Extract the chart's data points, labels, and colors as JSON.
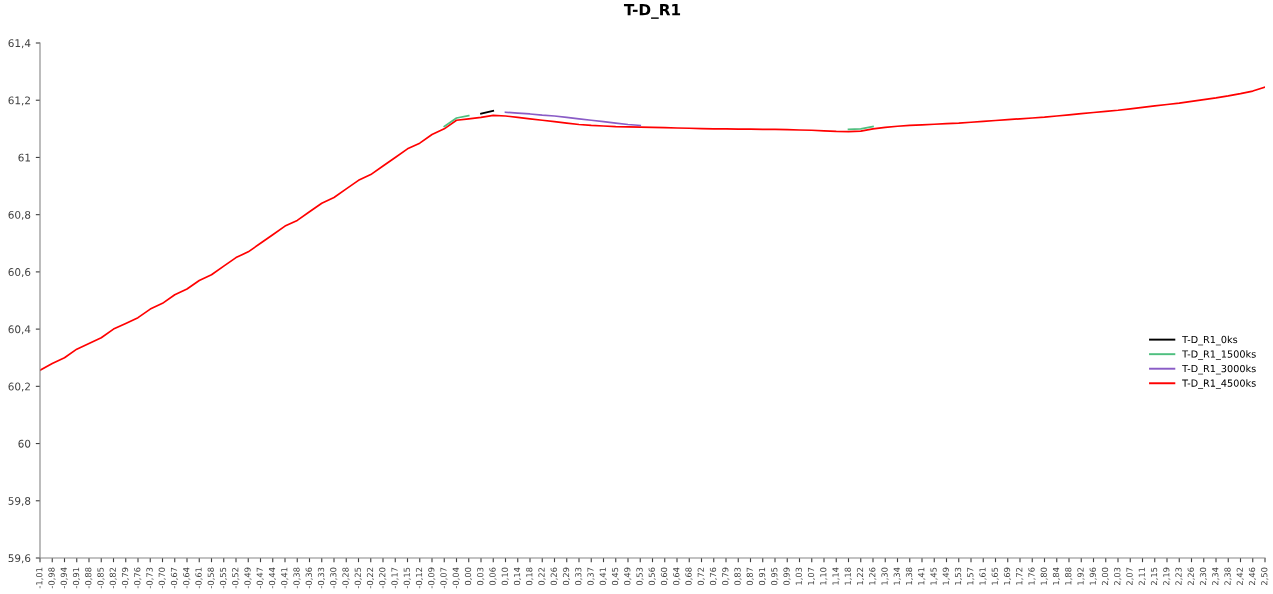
{
  "chart_data": {
    "type": "line",
    "title": "T-D_R1",
    "categories": [
      "-1,01",
      "-0,98",
      "-0,94",
      "-0,91",
      "-0,88",
      "-0,85",
      "-0,82",
      "-0,79",
      "-0,76",
      "-0,73",
      "-0,70",
      "-0,67",
      "-0,64",
      "-0,61",
      "-0,58",
      "-0,55",
      "-0,52",
      "-0,49",
      "-0,47",
      "-0,44",
      "-0,41",
      "-0,38",
      "-0,36",
      "-0,33",
      "-0,30",
      "-0,28",
      "-0,25",
      "-0,22",
      "-0,20",
      "-0,17",
      "-0,15",
      "-0,12",
      "-0,09",
      "-0,07",
      "-0,04",
      "0,00",
      "0,03",
      "0,06",
      "0,10",
      "0,14",
      "0,18",
      "0,22",
      "0,26",
      "0,29",
      "0,33",
      "0,37",
      "0,41",
      "0,45",
      "0,49",
      "0,53",
      "0,56",
      "0,60",
      "0,64",
      "0,68",
      "0,72",
      "0,76",
      "0,79",
      "0,83",
      "0,87",
      "0,91",
      "0,95",
      "0,99",
      "1,03",
      "1,07",
      "1,10",
      "1,14",
      "1,18",
      "1,22",
      "1,26",
      "1,30",
      "1,34",
      "1,38",
      "1,41",
      "1,45",
      "1,49",
      "1,53",
      "1,57",
      "1,61",
      "1,65",
      "1,69",
      "1,72",
      "1,76",
      "1,80",
      "1,84",
      "1,88",
      "1,92",
      "1,96",
      "2,00",
      "2,03",
      "2,07",
      "2,11",
      "2,15",
      "2,19",
      "2,23",
      "2,26",
      "2,30",
      "2,34",
      "2,38",
      "2,42",
      "2,46",
      "2,50"
    ],
    "series": [
      {
        "name": "T-D_R1_0ks",
        "color": "#000000",
        "values": [
          null,
          null,
          null,
          null,
          null,
          null,
          null,
          null,
          null,
          null,
          null,
          null,
          null,
          null,
          null,
          null,
          null,
          null,
          null,
          null,
          null,
          null,
          null,
          null,
          null,
          null,
          null,
          null,
          null,
          null,
          null,
          null,
          null,
          null,
          null,
          null,
          61.153,
          61.163,
          null,
          null,
          null,
          null,
          null,
          null,
          null,
          null,
          null,
          null,
          null,
          null,
          null,
          null,
          null,
          null,
          null,
          null,
          null,
          null,
          null,
          null,
          null,
          null,
          null,
          null,
          null,
          null,
          null,
          null,
          null,
          null,
          null,
          null,
          null,
          null,
          null,
          null,
          null,
          null,
          null,
          null,
          null,
          null,
          null,
          null,
          null,
          null,
          null,
          null,
          null,
          null,
          null,
          null,
          null,
          null,
          null,
          null,
          null,
          null,
          null,
          null,
          null
        ]
      },
      {
        "name": "T-D_R1_1500ks",
        "color": "#4fbf7f",
        "values": [
          null,
          null,
          null,
          null,
          null,
          null,
          null,
          null,
          null,
          null,
          null,
          null,
          null,
          null,
          null,
          null,
          null,
          null,
          null,
          null,
          null,
          null,
          null,
          null,
          null,
          null,
          null,
          null,
          null,
          null,
          null,
          null,
          null,
          61.108,
          61.138,
          61.146,
          null,
          null,
          null,
          null,
          null,
          null,
          null,
          null,
          null,
          null,
          null,
          null,
          null,
          null,
          null,
          null,
          null,
          null,
          null,
          null,
          null,
          null,
          null,
          null,
          null,
          null,
          null,
          null,
          null,
          null,
          61.098,
          61.1,
          61.108,
          null,
          null,
          null,
          null,
          null,
          null,
          null,
          null,
          null,
          null,
          null,
          null,
          null,
          null,
          null,
          null,
          null,
          null,
          null,
          null,
          null,
          null,
          null,
          null,
          null,
          null,
          null,
          null,
          null,
          null,
          null,
          null
        ]
      },
      {
        "name": "T-D_R1_3000ks",
        "color": "#8a5cc6",
        "values": [
          null,
          null,
          null,
          null,
          null,
          null,
          null,
          null,
          null,
          null,
          null,
          null,
          null,
          null,
          null,
          null,
          null,
          null,
          null,
          null,
          null,
          null,
          null,
          null,
          null,
          null,
          null,
          null,
          null,
          null,
          null,
          null,
          null,
          null,
          null,
          null,
          null,
          null,
          61.158,
          61.155,
          61.152,
          61.148,
          61.145,
          61.14,
          61.135,
          61.13,
          61.125,
          61.12,
          61.115,
          61.112,
          null,
          null,
          null,
          null,
          null,
          null,
          null,
          null,
          null,
          null,
          null,
          null,
          null,
          null,
          null,
          null,
          null,
          null,
          null,
          null,
          null,
          null,
          null,
          null,
          null,
          null,
          null,
          null,
          null,
          null,
          null,
          null,
          null,
          null,
          null,
          null,
          null,
          null,
          null,
          null,
          null,
          null,
          null,
          null,
          null,
          null,
          null,
          null,
          null,
          null,
          null
        ]
      },
      {
        "name": "T-D_R1_4500ks",
        "color": "#ff0000",
        "values": [
          60.256,
          60.28,
          60.3,
          60.33,
          60.35,
          60.37,
          60.4,
          60.42,
          60.44,
          60.47,
          60.49,
          60.52,
          60.54,
          60.57,
          60.59,
          60.62,
          60.65,
          60.67,
          60.7,
          60.73,
          60.76,
          60.78,
          60.81,
          60.84,
          60.86,
          60.89,
          60.92,
          60.94,
          60.97,
          61.0,
          61.03,
          61.05,
          61.08,
          61.1,
          61.13,
          61.135,
          61.14,
          61.147,
          61.145,
          61.14,
          61.135,
          61.13,
          61.125,
          61.12,
          61.115,
          61.112,
          61.11,
          61.108,
          61.107,
          61.106,
          61.105,
          61.104,
          61.103,
          61.102,
          61.101,
          61.1,
          61.1,
          61.099,
          61.099,
          61.098,
          61.098,
          61.097,
          61.096,
          61.095,
          61.093,
          61.091,
          61.09,
          61.092,
          61.1,
          61.105,
          61.109,
          61.112,
          61.114,
          61.116,
          61.118,
          61.12,
          61.123,
          61.126,
          61.129,
          61.132,
          61.135,
          61.138,
          61.141,
          61.145,
          61.149,
          61.153,
          61.157,
          61.161,
          61.165,
          61.17,
          61.175,
          61.18,
          61.185,
          61.19,
          61.196,
          61.202,
          61.208,
          61.215,
          61.223,
          61.232,
          61.246
        ]
      }
    ],
    "ylim": [
      59.6,
      61.4
    ],
    "yticks": [
      {
        "value": 59.6,
        "label": "59,6"
      },
      {
        "value": 59.8,
        "label": "59,8"
      },
      60,
      {
        "value": 60.2,
        "label": "60,2"
      },
      {
        "value": 60.4,
        "label": "60,4"
      },
      {
        "value": 60.6,
        "label": "60,6"
      },
      {
        "value": 60.8,
        "label": "60,8"
      },
      61,
      {
        "value": 61.2,
        "label": "61,2"
      },
      {
        "value": 61.4,
        "label": "61,4"
      }
    ],
    "grid": false,
    "legend": "right",
    "marker": "none",
    "line_style": "solid"
  }
}
